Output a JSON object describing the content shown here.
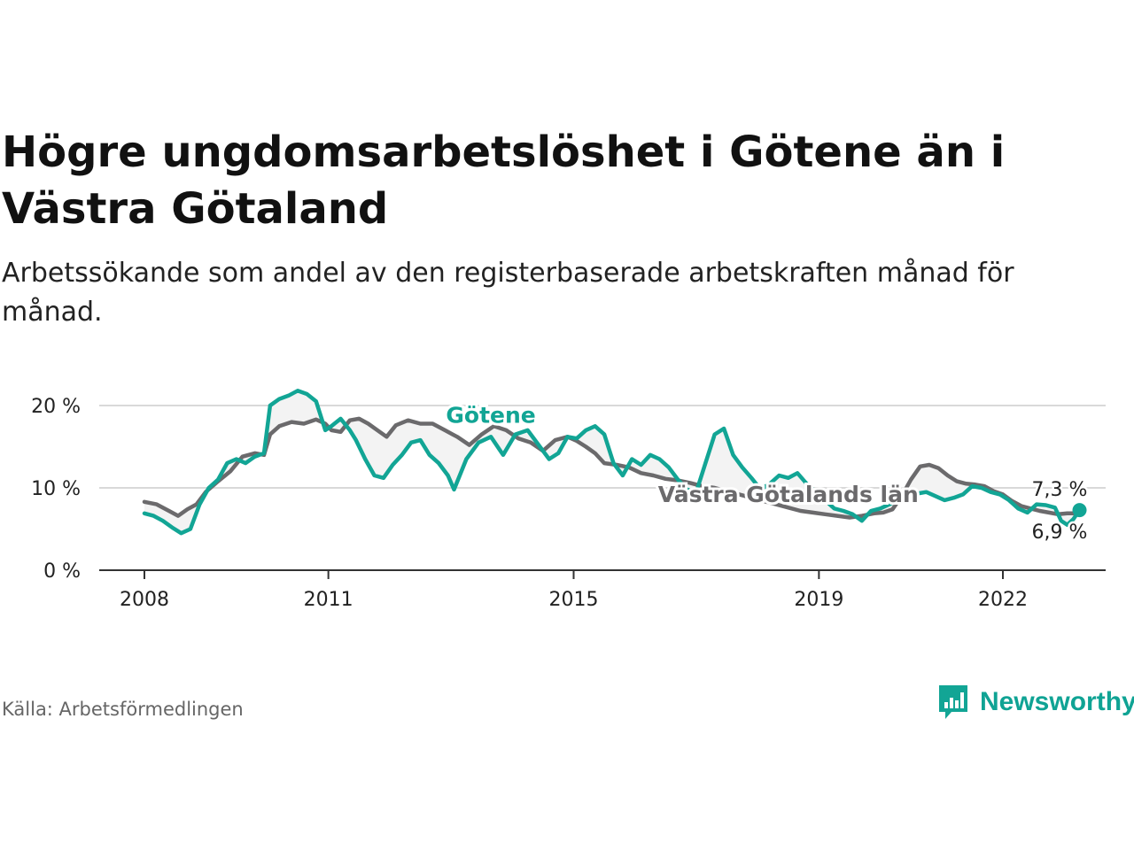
{
  "title": "Högre ungdomsarbetslöshet i Götene än i Västra Götaland",
  "subtitle": "Arbetssökande som andel av den registerbaserade arbetskraften månad för månad.",
  "source": "Källa: Arbetsförmedlingen",
  "brand": {
    "name": "Newsworthy",
    "icon": "newsworthy-logo-icon"
  },
  "colors": {
    "gotene": "#12a595",
    "region": "#6b6a6c",
    "grid": "#d9d9d9",
    "axis": "#333333",
    "fill": "#f3f3f3"
  },
  "chart_data": {
    "type": "line",
    "title": "Högre ungdomsarbetslöshet i Götene än i Västra Götaland",
    "xlabel": "",
    "ylabel": "",
    "x_ticks": [
      {
        "year": 2008,
        "label": "2008"
      },
      {
        "year": 2011,
        "label": "2011"
      },
      {
        "year": 2015,
        "label": "2015"
      },
      {
        "year": 2019,
        "label": "2019"
      },
      {
        "year": 2022,
        "label": "2022"
      }
    ],
    "y_ticks": [
      {
        "value": 0,
        "label": "0 %"
      },
      {
        "value": 10,
        "label": "10 %"
      },
      {
        "value": 20,
        "label": "20 %"
      }
    ],
    "xlim": [
      2007.3,
      2023.7
    ],
    "ylim": [
      0,
      20
    ],
    "grid": true,
    "series": [
      {
        "name": "Västra Götalands län",
        "label": "Västra Götalands län",
        "end_label": "6,9 %",
        "points": [
          [
            2008,
            8.3
          ],
          [
            2008.2,
            8
          ],
          [
            2008.4,
            7.2
          ],
          [
            2008.55,
            6.6
          ],
          [
            2008.7,
            7.4
          ],
          [
            2008.85,
            8
          ],
          [
            2009,
            9.5
          ],
          [
            2009.2,
            10.8
          ],
          [
            2009.4,
            12
          ],
          [
            2009.6,
            13.8
          ],
          [
            2009.8,
            14.2
          ],
          [
            2009.95,
            14
          ],
          [
            2010.05,
            16.5
          ],
          [
            2010.2,
            17.5
          ],
          [
            2010.4,
            18
          ],
          [
            2010.6,
            17.8
          ],
          [
            2010.8,
            18.3
          ],
          [
            2010.95,
            17.8
          ],
          [
            2011.05,
            17
          ],
          [
            2011.2,
            16.8
          ],
          [
            2011.35,
            18.2
          ],
          [
            2011.5,
            18.4
          ],
          [
            2011.65,
            17.8
          ],
          [
            2011.8,
            17
          ],
          [
            2011.95,
            16.2
          ],
          [
            2012.1,
            17.6
          ],
          [
            2012.3,
            18.2
          ],
          [
            2012.5,
            17.8
          ],
          [
            2012.7,
            17.8
          ],
          [
            2012.9,
            17
          ],
          [
            2013.1,
            16.2
          ],
          [
            2013.3,
            15.2
          ],
          [
            2013.5,
            16.5
          ],
          [
            2013.7,
            17.5
          ],
          [
            2013.9,
            17
          ],
          [
            2014.1,
            16
          ],
          [
            2014.3,
            15.5
          ],
          [
            2014.5,
            14.5
          ],
          [
            2014.7,
            15.8
          ],
          [
            2014.9,
            16.2
          ],
          [
            2015.05,
            15.7
          ],
          [
            2015.2,
            15
          ],
          [
            2015.35,
            14.2
          ],
          [
            2015.5,
            13
          ],
          [
            2015.7,
            12.8
          ],
          [
            2015.9,
            12.5
          ],
          [
            2016.1,
            11.8
          ],
          [
            2016.3,
            11.5
          ],
          [
            2016.5,
            11.1
          ],
          [
            2016.7,
            10.9
          ],
          [
            2016.9,
            10.6
          ],
          [
            2017.1,
            10.2
          ],
          [
            2017.3,
            10
          ],
          [
            2017.5,
            9.6
          ],
          [
            2017.7,
            9.2
          ],
          [
            2017.9,
            8.8
          ],
          [
            2018.1,
            8.4
          ],
          [
            2018.3,
            8
          ],
          [
            2018.5,
            7.6
          ],
          [
            2018.7,
            7.2
          ],
          [
            2018.9,
            7
          ],
          [
            2019.1,
            6.8
          ],
          [
            2019.3,
            6.6
          ],
          [
            2019.5,
            6.4
          ],
          [
            2019.7,
            6.6
          ],
          [
            2019.9,
            6.9
          ],
          [
            2020.05,
            7
          ],
          [
            2020.2,
            7.4
          ],
          [
            2020.35,
            9
          ],
          [
            2020.5,
            11
          ],
          [
            2020.65,
            12.6
          ],
          [
            2020.8,
            12.8
          ],
          [
            2020.95,
            12.4
          ],
          [
            2021.1,
            11.5
          ],
          [
            2021.25,
            10.8
          ],
          [
            2021.4,
            10.5
          ],
          [
            2021.55,
            10.4
          ],
          [
            2021.7,
            10.2
          ],
          [
            2021.85,
            9.6
          ],
          [
            2022.0,
            9.2
          ],
          [
            2022.15,
            8.4
          ],
          [
            2022.3,
            7.8
          ],
          [
            2022.45,
            7.5
          ],
          [
            2022.6,
            7.2
          ],
          [
            2022.75,
            7
          ],
          [
            2022.9,
            6.8
          ],
          [
            2023.05,
            6.9
          ],
          [
            2023.25,
            6.9
          ]
        ]
      },
      {
        "name": "Götene",
        "label": "Götene",
        "end_label": "7,3 %",
        "points": [
          [
            2008,
            6.9
          ],
          [
            2008.15,
            6.6
          ],
          [
            2008.3,
            6
          ],
          [
            2008.45,
            5.2
          ],
          [
            2008.6,
            4.5
          ],
          [
            2008.75,
            5
          ],
          [
            2008.9,
            8
          ],
          [
            2009.05,
            10
          ],
          [
            2009.2,
            11
          ],
          [
            2009.35,
            13
          ],
          [
            2009.5,
            13.5
          ],
          [
            2009.65,
            13
          ],
          [
            2009.8,
            13.8
          ],
          [
            2009.95,
            14.2
          ],
          [
            2010.05,
            20
          ],
          [
            2010.2,
            20.8
          ],
          [
            2010.35,
            21.2
          ],
          [
            2010.5,
            21.8
          ],
          [
            2010.65,
            21.4
          ],
          [
            2010.8,
            20.5
          ],
          [
            2010.95,
            17
          ],
          [
            2011.05,
            17.5
          ],
          [
            2011.2,
            18.4
          ],
          [
            2011.35,
            17
          ],
          [
            2011.45,
            15.8
          ],
          [
            2011.6,
            13.5
          ],
          [
            2011.75,
            11.5
          ],
          [
            2011.9,
            11.2
          ],
          [
            2012.05,
            12.8
          ],
          [
            2012.2,
            14
          ],
          [
            2012.35,
            15.5
          ],
          [
            2012.5,
            15.8
          ],
          [
            2012.65,
            14
          ],
          [
            2012.8,
            13
          ],
          [
            2012.95,
            11.5
          ],
          [
            2013.05,
            9.8
          ],
          [
            2013.25,
            13.5
          ],
          [
            2013.45,
            15.5
          ],
          [
            2013.65,
            16.2
          ],
          [
            2013.85,
            14
          ],
          [
            2014.05,
            16.5
          ],
          [
            2014.25,
            17
          ],
          [
            2014.45,
            15
          ],
          [
            2014.6,
            13.5
          ],
          [
            2014.75,
            14.2
          ],
          [
            2014.9,
            16.2
          ],
          [
            2015.05,
            16
          ],
          [
            2015.2,
            17
          ],
          [
            2015.35,
            17.5
          ],
          [
            2015.5,
            16.5
          ],
          [
            2015.65,
            13
          ],
          [
            2015.8,
            11.5
          ],
          [
            2015.95,
            13.5
          ],
          [
            2016.1,
            12.8
          ],
          [
            2016.25,
            14
          ],
          [
            2016.4,
            13.5
          ],
          [
            2016.55,
            12.5
          ],
          [
            2016.7,
            11
          ],
          [
            2016.85,
            9.8
          ],
          [
            2017.0,
            9.5
          ],
          [
            2017.15,
            13
          ],
          [
            2017.3,
            16.5
          ],
          [
            2017.45,
            17.2
          ],
          [
            2017.6,
            14
          ],
          [
            2017.75,
            12.5
          ],
          [
            2017.9,
            11.2
          ],
          [
            2018.05,
            9.8
          ],
          [
            2018.2,
            10.5
          ],
          [
            2018.35,
            11.5
          ],
          [
            2018.5,
            11.2
          ],
          [
            2018.65,
            11.8
          ],
          [
            2018.8,
            10.5
          ],
          [
            2018.95,
            9.5
          ],
          [
            2019.1,
            8.5
          ],
          [
            2019.25,
            7.5
          ],
          [
            2019.4,
            7.2
          ],
          [
            2019.55,
            6.8
          ],
          [
            2019.7,
            6
          ],
          [
            2019.85,
            7.2
          ],
          [
            2020.0,
            7.5
          ],
          [
            2020.15,
            8
          ],
          [
            2020.3,
            8.5
          ],
          [
            2020.45,
            9
          ],
          [
            2020.6,
            9.3
          ],
          [
            2020.75,
            9.5
          ],
          [
            2020.9,
            9
          ],
          [
            2021.05,
            8.5
          ],
          [
            2021.2,
            8.8
          ],
          [
            2021.35,
            9.2
          ],
          [
            2021.5,
            10.2
          ],
          [
            2021.65,
            10
          ],
          [
            2021.8,
            9.5
          ],
          [
            2021.95,
            9.2
          ],
          [
            2022.1,
            8.5
          ],
          [
            2022.25,
            7.5
          ],
          [
            2022.4,
            7
          ],
          [
            2022.55,
            8
          ],
          [
            2022.7,
            7.9
          ],
          [
            2022.85,
            7.6
          ],
          [
            2022.95,
            6
          ],
          [
            2023.05,
            5.5
          ],
          [
            2023.15,
            6.2
          ],
          [
            2023.25,
            7.3
          ]
        ]
      }
    ],
    "inline_labels": [
      {
        "series": "Götene",
        "x": 2013.65,
        "y": 17.9
      },
      {
        "series": "Västra Götalands län",
        "x": 2018.5,
        "y": 8.3
      }
    ]
  }
}
